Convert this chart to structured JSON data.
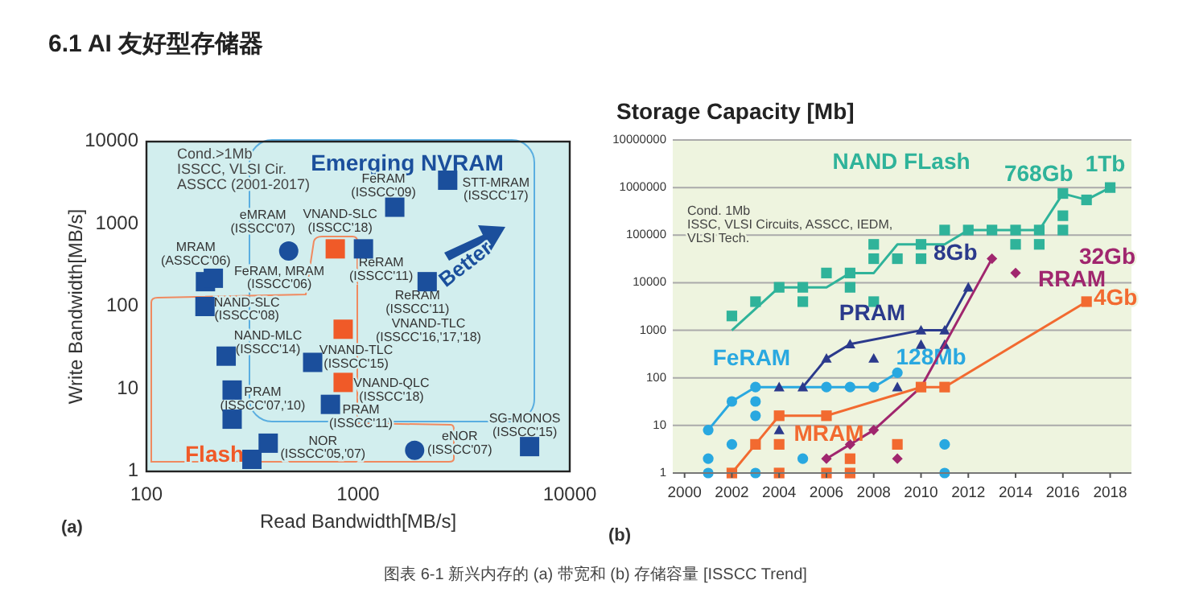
{
  "chart_data": [
    {
      "type": "scatter",
      "title": "6.1 AI 友好型存储器",
      "xlabel": "Read Bandwidth[MB/s]",
      "ylabel": "Write Bandwidth[MB/s]",
      "log": "xy",
      "xlim": [
        100,
        10000
      ],
      "ylim": [
        1,
        10000
      ],
      "xticks": [
        100,
        1000,
        10000
      ],
      "yticks": [
        1,
        10,
        100,
        1000,
        10000
      ],
      "grid": false,
      "series": [
        {
          "color": "#1b4f9c",
          "marker": "square",
          "x": [
            190,
            207,
            189,
            238,
            254,
            254,
            376,
            315,
            1060,
            1490,
            2650,
            2120,
            610,
            740,
            6460
          ],
          "values": [
            200,
            220,
            100,
            25,
            9.7,
            4.3,
            2.2,
            1.4,
            500,
            1600,
            3400,
            200,
            21,
            6.5,
            2
          ]
        },
        {
          "color": "#1b4f9c",
          "marker": "circle",
          "x": [
            470,
            1850
          ],
          "values": [
            470,
            1.8
          ]
        },
        {
          "color": "#f05a28",
          "marker": "square",
          "x": [
            780,
            850,
            850
          ],
          "values": [
            500,
            53,
            12
          ]
        }
      ],
      "annotations": [
        "Cond.>1Mb\nISSCC, VLSI Cir.\nASSCC (2001-2017)",
        "Emerging NVRAM",
        "Better",
        "Flash",
        "(a)",
        "图表 6-1 新兴内存的 (a) 带宽和 (b) 存储容量 [ISSCC Trend]",
        {
          "text": "MRAM\n(ASSCC'06)",
          "x": 190,
          "y": 200
        },
        {
          "text": "FeRAM, MRAM\n(ISSCC'06)",
          "x": 207,
          "y": 220
        },
        {
          "text": "NAND-SLC\n(ISSCC'08)",
          "x": 189,
          "y": 100
        },
        {
          "text": "NAND-MLC\n(ISSCC'14)",
          "x": 238,
          "y": 25
        },
        {
          "text": "PRAM\n(ISSCC'07,'10)",
          "x": 254,
          "y": 9.7
        },
        {
          "text": "NOR\n(ISSCC'05,'07)",
          "x": 376,
          "y": 2.2
        },
        {
          "text": "eMRAM\n(ISSCC'07)",
          "x": 470,
          "y": 470
        },
        {
          "text": "VNAND-SLC\n(ISSCC'18)",
          "x": 780,
          "y": 500
        },
        {
          "text": "ReRAM\n(ISSCC'11)",
          "x": 1060,
          "y": 500
        },
        {
          "text": "FeRAM\n(ISSCC'09)",
          "x": 1490,
          "y": 1600
        },
        {
          "text": "STT-MRAM\n(ISSCC'17)",
          "x": 2650,
          "y": 3400
        },
        {
          "text": "ReRAM\n(ISSCC'11)",
          "x": 2120,
          "y": 200
        },
        {
          "text": "VNAND-TLC\n(ISSCC'16,'17,'18)",
          "x": 850,
          "y": 53
        },
        {
          "text": "VNAND-TLC\n(ISSCC'15)",
          "x": 610,
          "y": 21
        },
        {
          "text": "VNAND-QLC\n(ISSCC'18)",
          "x": 850,
          "y": 12
        },
        {
          "text": "PRAM\n(ISSCC'11)",
          "x": 740,
          "y": 6.5
        },
        {
          "text": "eNOR\n(ISSCC'07)",
          "x": 1850,
          "y": 1.8
        },
        {
          "text": "SG-MONOS\n(ISSCC'15)",
          "x": 6460,
          "y": 2
        }
      ]
    },
    {
      "type": "scatter",
      "title": "Storage Capacity [Mb]",
      "log": true,
      "xlim": [
        1999.5,
        2018.9
      ],
      "ylim": [
        1,
        10000000
      ],
      "xticks": [
        2000,
        2002,
        2004,
        2006,
        2008,
        2010,
        2012,
        2014,
        2016,
        2018
      ],
      "yticks": [
        1,
        10,
        100,
        1000,
        10000,
        100000,
        1000000,
        10000000
      ],
      "grid": "y",
      "series": [
        {
          "type": "line",
          "color": "#2fb39a",
          "marker": "none",
          "x": [
            2002,
            2004,
            2006,
            2007,
            2008,
            2009,
            2011,
            2012,
            2015,
            2016,
            2017,
            2018
          ],
          "values": [
            1000,
            8000,
            8000,
            16000,
            16000,
            64000,
            64000,
            128000,
            128000,
            750000,
            550000,
            1000000
          ]
        },
        {
          "name": "NAND FLash",
          "color": "#2fb39a",
          "marker": "square",
          "x": [
            2002,
            2003,
            2004,
            2005,
            2005,
            2006,
            2007,
            2007,
            2008,
            2008,
            2008,
            2009,
            2010,
            2010,
            2011,
            2012,
            2013,
            2014,
            2014,
            2015,
            2015,
            2016,
            2016,
            2016,
            2017,
            2018
          ],
          "values": [
            2000,
            4000,
            8000,
            8000,
            4000,
            16000,
            16000,
            8000,
            64000,
            32000,
            4000,
            32000,
            64000,
            32000,
            128000,
            128000,
            128000,
            128000,
            64000,
            128000,
            64000,
            750000,
            256000,
            128000,
            550000,
            1000000
          ]
        },
        {
          "type": "line",
          "color": "#29a8e0",
          "marker": "none",
          "x": [
            2001,
            2002,
            2003,
            2008,
            2009
          ],
          "values": [
            8,
            32,
            64,
            64,
            128
          ]
        },
        {
          "name": "FeRAM",
          "color": "#29a8e0",
          "marker": "circle",
          "x": [
            2001,
            2001,
            2001,
            2002,
            2002,
            2003,
            2003,
            2003,
            2003,
            2005,
            2006,
            2007,
            2008,
            2009,
            2011,
            2011
          ],
          "values": [
            8,
            2,
            1,
            32,
            4,
            64,
            32,
            16,
            1,
            2,
            64,
            64,
            64,
            128,
            4,
            1
          ]
        },
        {
          "type": "line",
          "color": "#2b3a8c",
          "marker": "none",
          "x": [
            2005,
            2006,
            2007,
            2010,
            2011,
            2012
          ],
          "values": [
            64,
            256,
            512,
            1000,
            1000,
            8000
          ]
        },
        {
          "name": "PRAM",
          "color": "#2b3a8c",
          "marker": "triangle",
          "x": [
            2004,
            2004,
            2005,
            2006,
            2007,
            2008,
            2009,
            2010,
            2010,
            2011,
            2011,
            2012
          ],
          "values": [
            64,
            8,
            64,
            256,
            512,
            256,
            64,
            1000,
            500,
            1000,
            500,
            8000
          ]
        },
        {
          "type": "line",
          "color": "#a0266e",
          "marker": "none",
          "x": [
            2006,
            2007,
            2008,
            2010,
            2013
          ],
          "values": [
            2,
            4,
            8,
            64,
            32000
          ]
        },
        {
          "name": "RRAM",
          "color": "#a0266e",
          "marker": "diamond",
          "x": [
            2006,
            2007,
            2008,
            2009,
            2013,
            2014
          ],
          "values": [
            2,
            4,
            8,
            2,
            32000,
            16000
          ]
        },
        {
          "type": "line",
          "color": "#f26a30",
          "marker": "none",
          "x": [
            2002,
            2003,
            2004,
            2006,
            2010,
            2011,
            2017
          ],
          "values": [
            1,
            4,
            16,
            16,
            64,
            64,
            4000
          ]
        },
        {
          "name": "MRAM",
          "color": "#f26a30",
          "marker": "square",
          "x": [
            2002,
            2003,
            2004,
            2004,
            2004,
            2006,
            2006,
            2007,
            2007,
            2009,
            2010,
            2011,
            2017
          ],
          "values": [
            1,
            4,
            16,
            4,
            1,
            16,
            1,
            2,
            1,
            4,
            64,
            64,
            4000
          ]
        }
      ],
      "annotations": [
        "Cond. 1Mb\nISSC, VLSI Circuits, ASSCC, IEDM,\nVLSI Tech.",
        "(b)",
        "32Gb",
        {
          "text": "768Gb",
          "x": 2016,
          "y": 750000
        },
        {
          "text": "1Tb",
          "x": 2018,
          "y": 1000000
        },
        {
          "text": "8Gb",
          "x": 2012,
          "y": 8000
        },
        {
          "text": "4Gb",
          "x": 2017,
          "y": 4000
        },
        {
          "text": "128Mb",
          "x": 2009,
          "y": 128
        }
      ]
    }
  ]
}
